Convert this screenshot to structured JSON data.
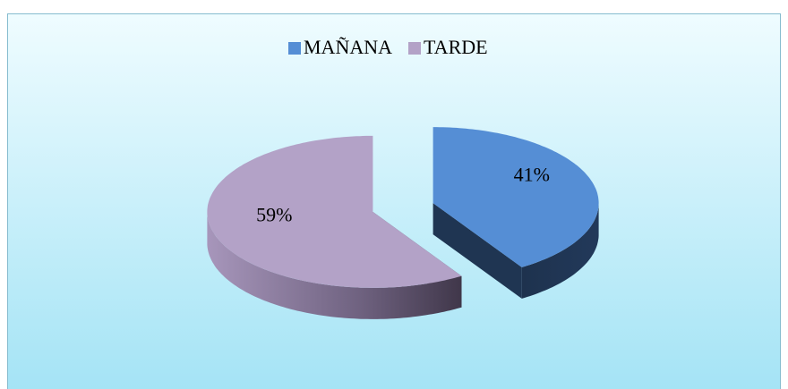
{
  "chart_data": {
    "type": "pie",
    "categories": [
      "MAÑANA",
      "TARDE"
    ],
    "values": [
      41,
      59
    ],
    "value_labels": [
      "41%",
      "59%"
    ],
    "colors": [
      "#558ed5",
      "#b3a2c7"
    ],
    "legend": "top"
  }
}
